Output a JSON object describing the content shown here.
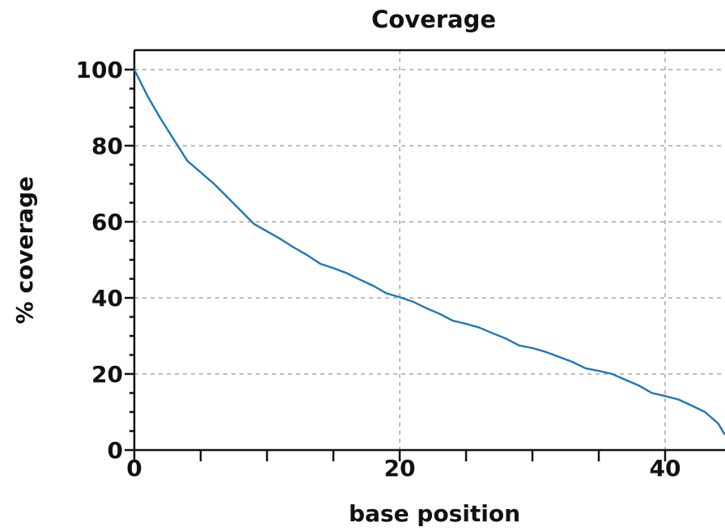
{
  "chart_data": {
    "type": "line",
    "title": "Coverage",
    "xlabel": "base position",
    "ylabel": "% coverage",
    "xlim": [
      0,
      44.5
    ],
    "ylim": [
      0,
      100
    ],
    "xticks": [
      0,
      20,
      40
    ],
    "yticks": [
      0,
      20,
      40,
      60,
      80,
      100
    ],
    "grid": true,
    "series": [
      {
        "color": "#1f77b4",
        "x": [
          0,
          1,
          2,
          3,
          4,
          5,
          6,
          7,
          8,
          9,
          10,
          11,
          12,
          13,
          14,
          15,
          16,
          17,
          18,
          19,
          20,
          21,
          22,
          23,
          24,
          25,
          26,
          27,
          28,
          29,
          30,
          31,
          32,
          33,
          34,
          35,
          36,
          37,
          38,
          39,
          40,
          41,
          42,
          43,
          44,
          44.5
        ],
        "y": [
          100,
          93,
          87,
          81.5,
          76,
          73,
          70,
          66.5,
          63,
          59.5,
          57.5,
          55.5,
          53.3,
          51.3,
          49,
          47.8,
          46.5,
          44.8,
          43.2,
          41.2,
          40.2,
          39,
          37.3,
          35.8,
          34,
          33.2,
          32.2,
          30.7,
          29.3,
          27.5,
          26.8,
          25.8,
          24.5,
          23.2,
          21.5,
          20.8,
          20,
          18.5,
          17,
          15,
          14.2,
          13.3,
          11.7,
          10,
          7,
          4
        ]
      }
    ]
  }
}
